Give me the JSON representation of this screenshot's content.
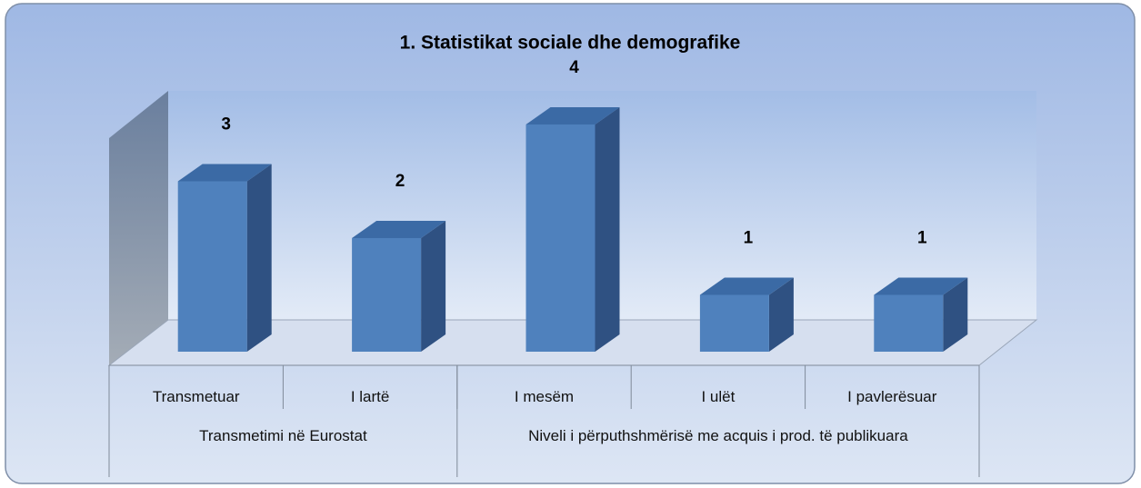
{
  "chart_data": {
    "type": "bar3d",
    "title": "1. Statistikat sociale dhe demografike",
    "categories": [
      "Transmetuar",
      "I lartë",
      "I mesëm",
      "I ulët",
      "I pavlerësuar"
    ],
    "groups": [
      {
        "label": "Transmetimi në Eurostat",
        "size": 2
      },
      {
        "label": "Niveli i përputhshmërisë me acquis i prod. të publikuara",
        "size": 3
      }
    ],
    "values": [
      3,
      2,
      4,
      1,
      1
    ],
    "color": "#4f81bd"
  }
}
